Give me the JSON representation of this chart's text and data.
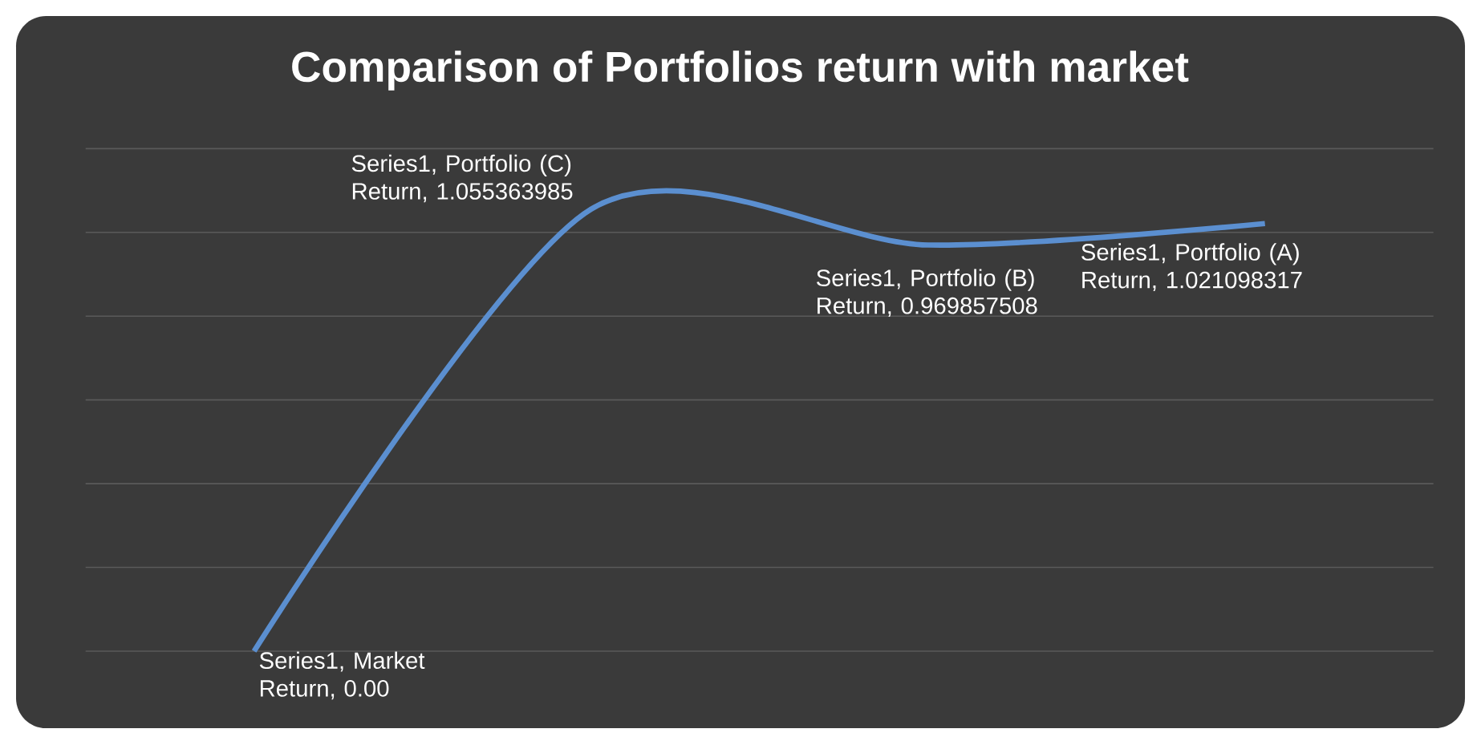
{
  "chart_data": {
    "type": "line",
    "title": "Comparison of Portfolios return with market",
    "categories": [
      null,
      null,
      null,
      null
    ],
    "series": [
      {
        "color": "#5b8fd0",
        "values": [
          0.0,
          1.055363985,
          0.969857508,
          1.021098317
        ],
        "value_labels": [
          "Series1, Market Return, 0.00",
          "Series1, Portfolio (C) Return, 1.055363985",
          "Series1, Portfolio (B) Return, 0.969857508",
          "Series1, Portfolio (A) Return, 1.021098317"
        ]
      }
    ],
    "ylim": [
      0,
      1.2
    ],
    "yticks": [
      {
        "value": 0,
        "label": null
      },
      {
        "value": 0.2,
        "label": null
      },
      {
        "value": 0.4,
        "label": null
      },
      {
        "value": 0.6,
        "label": null
      },
      {
        "value": 0.8,
        "label": null
      },
      {
        "value": 1.0,
        "label": null
      },
      {
        "value": 1.2,
        "label": null
      }
    ],
    "grid": "y",
    "marker": "none",
    "line_style": "solid"
  }
}
